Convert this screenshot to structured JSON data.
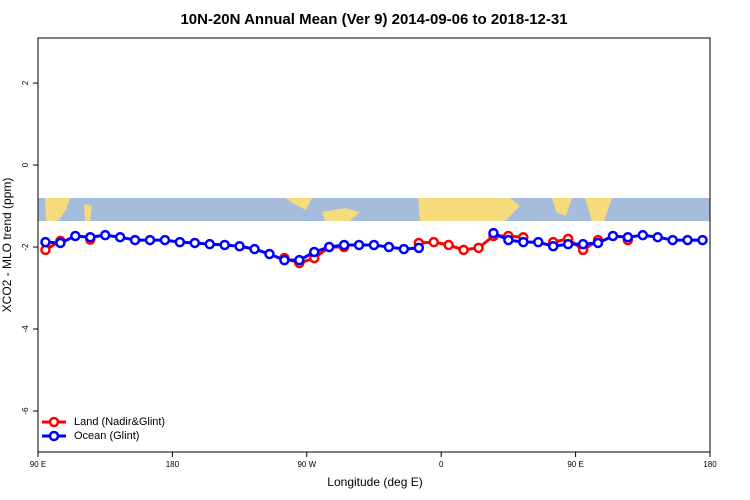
{
  "chart_data": {
    "type": "line",
    "title": "10N-20N Annual Mean (Ver 9)   2014-09-06 to 2018-12-31",
    "x_label": "Longitude (deg E)",
    "y_label": "XCO2 - MLO trend (ppm)",
    "x": [
      95,
      105,
      115,
      125,
      135,
      145,
      155,
      165,
      175,
      185,
      195,
      205,
      215,
      225,
      235,
      245,
      255,
      265,
      275,
      285,
      295,
      305,
      315,
      325,
      335,
      345,
      355,
      365,
      375,
      385,
      395,
      405,
      415,
      425,
      435,
      445,
      455,
      465,
      475,
      485,
      495,
      505,
      515,
      525,
      535
    ],
    "series": [
      {
        "name": "Land (Nadir&Glint)",
        "color": "#ff0000",
        "values": [
          -2.07,
          -1.85,
          null,
          -1.82,
          null,
          null,
          null,
          null,
          null,
          null,
          null,
          null,
          null,
          null,
          null,
          null,
          -2.27,
          -2.39,
          -2.27,
          -2.0,
          -2.0,
          null,
          null,
          null,
          null,
          -1.9,
          -1.88,
          -1.95,
          -2.07,
          -2.02,
          -1.73,
          -1.73,
          -1.76,
          null,
          -1.88,
          -1.8,
          -2.07,
          -1.83,
          null,
          -1.83,
          null,
          null,
          null,
          null,
          null
        ]
      },
      {
        "name": "Ocean (Glint)",
        "color": "#0000ff",
        "values": [
          -1.88,
          -1.9,
          -1.73,
          -1.76,
          -1.71,
          -1.76,
          -1.83,
          -1.83,
          -1.83,
          -1.88,
          -1.9,
          -1.93,
          -1.95,
          -1.98,
          -2.05,
          -2.17,
          -2.32,
          -2.32,
          -2.12,
          -2.0,
          -1.95,
          -1.95,
          -1.95,
          -2.0,
          -2.05,
          -2.02,
          null,
          null,
          null,
          null,
          -1.66,
          -1.83,
          -1.88,
          -1.88,
          -1.98,
          -1.93,
          -1.93,
          -1.9,
          -1.73,
          -1.76,
          -1.71,
          -1.76,
          -1.83,
          -1.83,
          -1.83
        ]
      }
    ],
    "xlim": [
      90,
      540
    ],
    "ylim": [
      -7,
      3.1
    ],
    "xticks": [
      {
        "value": 90,
        "label": "90 E"
      },
      180,
      {
        "value": 270,
        "label": "90 W"
      },
      {
        "value": 360,
        "label": "0"
      },
      {
        "value": 450,
        "label": "90 E"
      },
      {
        "value": 540,
        "label": "180"
      }
    ],
    "yticks": [
      -6,
      -4,
      -2,
      0,
      2
    ],
    "legend": "bottom-left"
  }
}
